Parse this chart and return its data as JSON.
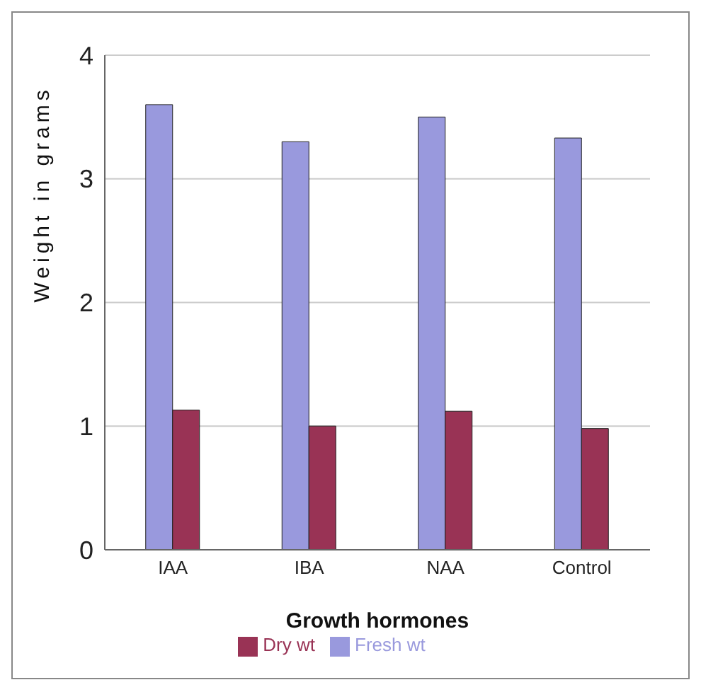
{
  "chart_data": {
    "type": "bar",
    "xlabel": "Growth hormones",
    "ylabel": "Weight in grams",
    "categories": [
      "IAA",
      "IBA",
      "NAA",
      "Control"
    ],
    "series": [
      {
        "name": "Fresh wt",
        "color": "#9999dd",
        "values": [
          3.6,
          3.3,
          3.5,
          3.33
        ]
      },
      {
        "name": "Dry wt",
        "color": "#993355",
        "values": [
          1.13,
          1.0,
          1.12,
          0.98
        ]
      }
    ],
    "ylim": [
      0,
      4
    ],
    "yticks": [
      0,
      1,
      2,
      3,
      4
    ],
    "grid": "y",
    "legend": "bottom"
  }
}
